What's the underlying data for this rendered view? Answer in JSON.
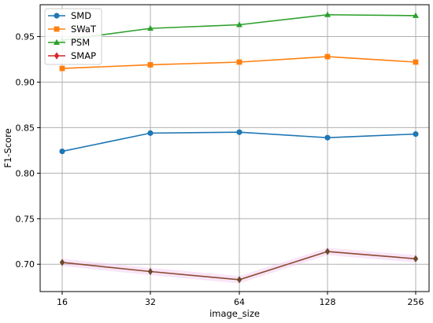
{
  "chart_data": {
    "type": "line",
    "title": "",
    "xlabel": "image_size",
    "ylabel": "F1-Score",
    "categories": [
      "16",
      "32",
      "64",
      "128",
      "256"
    ],
    "ylim": [
      0.67,
      0.985
    ],
    "yticks": [
      "0.70",
      "0.75",
      "0.80",
      "0.85",
      "0.90",
      "0.95"
    ],
    "ytick_values": [
      0.7,
      0.75,
      0.8,
      0.85,
      0.9,
      0.95
    ],
    "grid": true,
    "legend_position": "top-left",
    "series": [
      {
        "name": "SMD",
        "values": [
          0.824,
          0.844,
          0.845,
          0.839,
          0.843
        ],
        "color": "#1f77b4",
        "marker": "circle"
      },
      {
        "name": "SWaT",
        "values": [
          0.915,
          0.919,
          0.922,
          0.928,
          0.922
        ],
        "color": "#ff7f0e",
        "marker": "square"
      },
      {
        "name": "PSM",
        "values": [
          0.946,
          0.959,
          0.963,
          0.974,
          0.973
        ],
        "color": "#2ca02c",
        "marker": "triangle"
      },
      {
        "name": "SMAP",
        "values": [
          0.702,
          0.692,
          0.683,
          0.714,
          0.706
        ],
        "color": "#d62728",
        "marker": "diamond"
      }
    ],
    "smap_line_color": "#8c4a2f",
    "smap_marker_fill": "#6b4a2a",
    "smap_band_color": "#f2c6f0"
  }
}
